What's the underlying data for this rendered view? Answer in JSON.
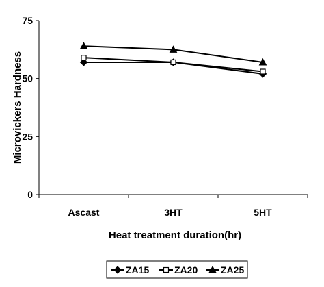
{
  "chart_data": {
    "type": "line",
    "title": "",
    "xlabel": "Heat treatment duration(hr)",
    "ylabel": "Microvickers Hardness",
    "categories": [
      "Ascast",
      "3HT",
      "5HT"
    ],
    "ylim": [
      0,
      75
    ],
    "yticks": [
      "0",
      "25",
      "50",
      "75"
    ],
    "grid": false,
    "legend_position": "bottom",
    "series": [
      {
        "name": "ZA15",
        "marker": "diamond-filled",
        "values": [
          57,
          57,
          52
        ]
      },
      {
        "name": "ZA20",
        "marker": "square-open",
        "values": [
          59,
          57,
          53
        ]
      },
      {
        "name": "ZA25",
        "marker": "triangle-filled",
        "values": [
          64,
          62.5,
          57
        ]
      }
    ],
    "colors": {
      "line": "#000000",
      "background": "#ffffff"
    }
  }
}
